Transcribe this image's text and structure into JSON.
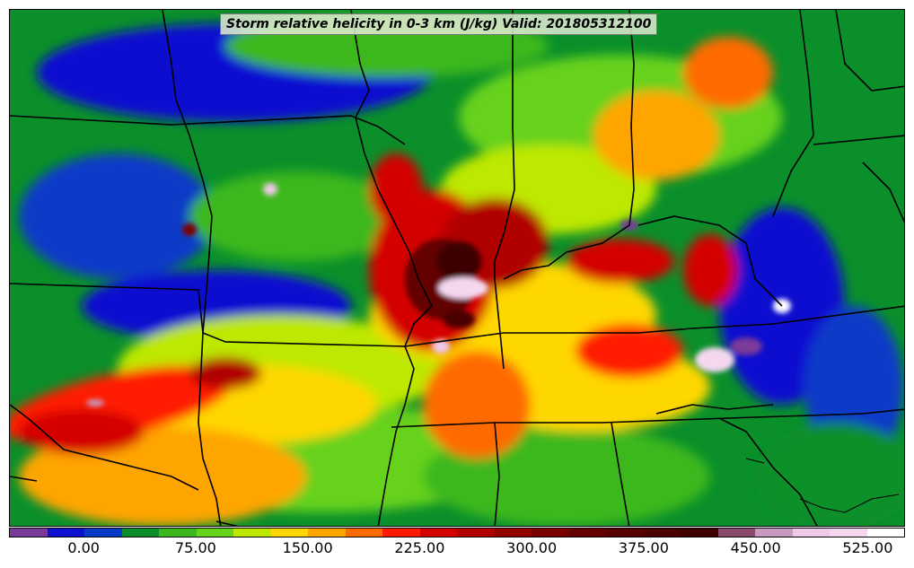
{
  "title": "Storm relative helicity in 0-3 km (J/kg) Valid: 201805312100",
  "variable": "Storm relative helicity",
  "layer": "0-3 km",
  "units": "J/kg",
  "valid_time": "201805312100",
  "colorbar": {
    "colors": [
      "#7a3a98",
      "#1010d0",
      "#0a3ac8",
      "#0a8f2a",
      "#3cb81e",
      "#66d21a",
      "#bde800",
      "#ffd700",
      "#ffa500",
      "#ff6a00",
      "#ff1a00",
      "#d40000",
      "#b00000",
      "#920000",
      "#7a0000",
      "#640000",
      "#560000",
      "#4a0000",
      "#3e0000",
      "#8a4a6a",
      "#c79ac0",
      "#f0c8e8",
      "#f5d8f0",
      "#ffffff"
    ],
    "tick_labels": [
      "0.00",
      "75.00",
      "150.00",
      "225.00",
      "300.00",
      "375.00",
      "450.00",
      "525.00"
    ],
    "min": -50,
    "max": 600,
    "step": 25
  }
}
